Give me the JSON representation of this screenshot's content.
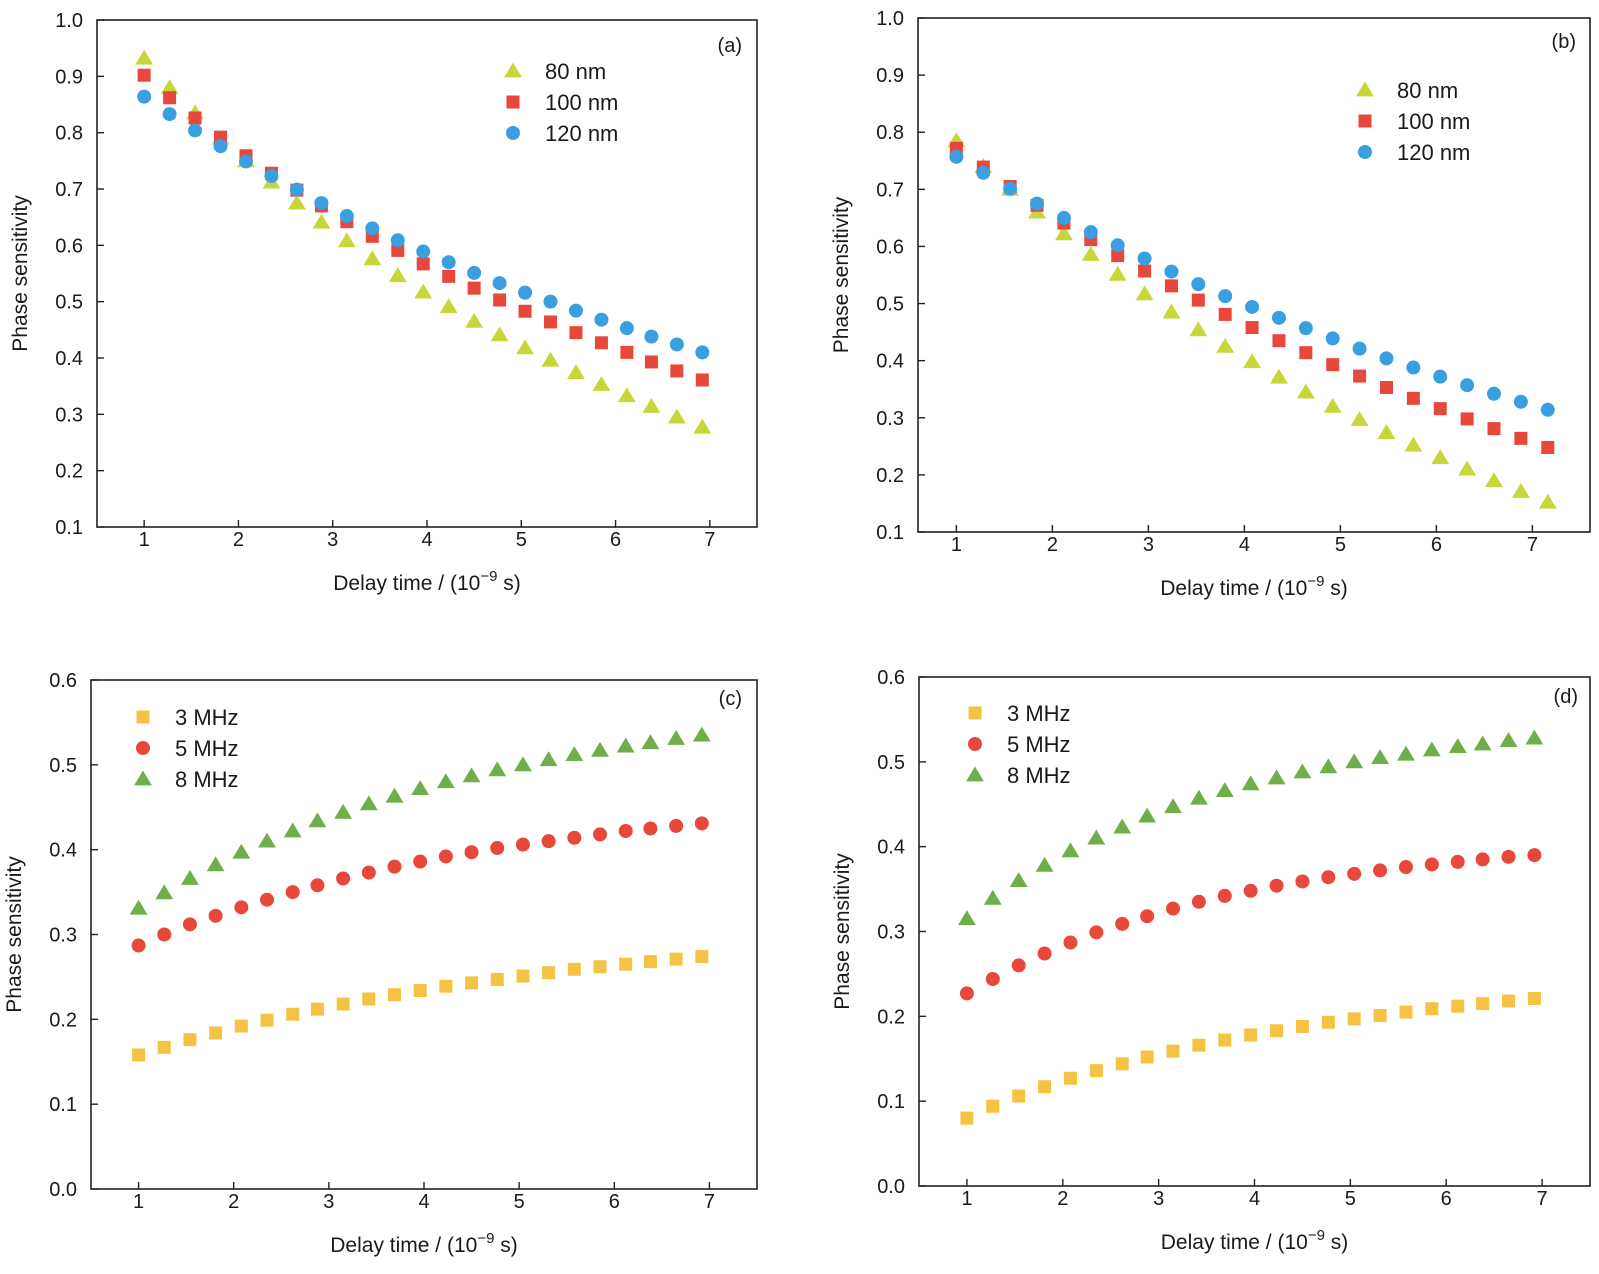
{
  "chart_data": [
    {
      "type": "scatter",
      "panel_label": "(a)",
      "xlabel": "Delay time / (10",
      "xlabel_exponent": "−9",
      "xlabel_suffix": " s)",
      "ylabel": "Phase sensitivity",
      "xlim": [
        0.5,
        7.5
      ],
      "ylim": [
        0.1,
        1.0
      ],
      "xticks": [
        1,
        2,
        3,
        4,
        5,
        6,
        7
      ],
      "yticks": [
        0.1,
        0.2,
        0.3,
        0.4,
        0.5,
        0.6,
        0.7,
        0.8,
        0.9,
        1.0
      ],
      "ytick_labels": [
        "0.1",
        "0.2",
        "0.3",
        "0.4",
        "0.5",
        "0.6",
        "0.7",
        "0.8",
        "0.9",
        "1.0"
      ],
      "grid": false,
      "legend_position": "top-right",
      "x": [
        1.0,
        1.27,
        1.54,
        1.81,
        2.08,
        2.35,
        2.62,
        2.88,
        3.15,
        3.42,
        3.69,
        3.96,
        4.23,
        4.5,
        4.77,
        5.04,
        5.31,
        5.58,
        5.85,
        6.12,
        6.38,
        6.65,
        6.92
      ],
      "series": [
        {
          "name": "80 nm",
          "marker": "triangle",
          "color": "#c8d63a",
          "values": [
            0.932,
            0.88,
            0.835,
            0.79,
            0.75,
            0.712,
            0.675,
            0.641,
            0.608,
            0.576,
            0.546,
            0.517,
            0.491,
            0.465,
            0.441,
            0.418,
            0.396,
            0.374,
            0.353,
            0.333,
            0.314,
            0.295,
            0.277
          ]
        },
        {
          "name": "100 nm",
          "marker": "square",
          "color": "#e8473b",
          "values": [
            0.902,
            0.862,
            0.826,
            0.792,
            0.759,
            0.728,
            0.698,
            0.67,
            0.642,
            0.616,
            0.591,
            0.567,
            0.545,
            0.524,
            0.503,
            0.483,
            0.464,
            0.445,
            0.427,
            0.41,
            0.393,
            0.377,
            0.361
          ]
        },
        {
          "name": "120 nm",
          "marker": "circle",
          "color": "#3a9fe0",
          "values": [
            0.864,
            0.833,
            0.804,
            0.776,
            0.749,
            0.723,
            0.699,
            0.675,
            0.652,
            0.63,
            0.609,
            0.589,
            0.57,
            0.551,
            0.533,
            0.516,
            0.5,
            0.484,
            0.468,
            0.453,
            0.438,
            0.424,
            0.41
          ]
        }
      ]
    },
    {
      "type": "scatter",
      "panel_label": "(b)",
      "xlabel": "Delay time / (10",
      "xlabel_exponent": "−9",
      "xlabel_suffix": " s)",
      "ylabel": "Phase sensitivity",
      "xlim": [
        0.6,
        7.6
      ],
      "ylim": [
        0.1,
        1.0
      ],
      "xticks": [
        1,
        2,
        3,
        4,
        5,
        6,
        7
      ],
      "yticks": [
        0.1,
        0.2,
        0.3,
        0.4,
        0.5,
        0.6,
        0.7,
        0.8,
        0.9,
        1.0
      ],
      "ytick_labels": [
        "0.1",
        "0.2",
        "0.3",
        "0.4",
        "0.5",
        "0.6",
        "0.7",
        "0.8",
        "0.9",
        "1.0"
      ],
      "grid": false,
      "legend_position": "top-right",
      "x": [
        1.0,
        1.28,
        1.56,
        1.84,
        2.12,
        2.4,
        2.68,
        2.96,
        3.24,
        3.52,
        3.8,
        4.08,
        4.36,
        4.64,
        4.92,
        5.2,
        5.48,
        5.76,
        6.04,
        6.32,
        6.6,
        6.88,
        7.16
      ],
      "series": [
        {
          "name": "80 nm",
          "marker": "triangle",
          "color": "#c8d63a",
          "values": [
            0.785,
            0.74,
            0.7,
            0.66,
            0.622,
            0.586,
            0.551,
            0.517,
            0.485,
            0.454,
            0.425,
            0.398,
            0.371,
            0.345,
            0.32,
            0.297,
            0.274,
            0.252,
            0.23,
            0.21,
            0.19,
            0.171,
            0.152
          ]
        },
        {
          "name": "100 nm",
          "marker": "square",
          "color": "#e8473b",
          "values": [
            0.772,
            0.739,
            0.705,
            0.672,
            0.641,
            0.612,
            0.584,
            0.557,
            0.531,
            0.506,
            0.481,
            0.458,
            0.435,
            0.414,
            0.393,
            0.373,
            0.353,
            0.334,
            0.316,
            0.298,
            0.281,
            0.264,
            0.248
          ]
        },
        {
          "name": "120 nm",
          "marker": "circle",
          "color": "#3a9fe0",
          "values": [
            0.757,
            0.729,
            0.701,
            0.675,
            0.65,
            0.625,
            0.602,
            0.579,
            0.556,
            0.534,
            0.513,
            0.494,
            0.475,
            0.457,
            0.439,
            0.421,
            0.404,
            0.388,
            0.372,
            0.357,
            0.342,
            0.328,
            0.314
          ]
        }
      ]
    },
    {
      "type": "scatter",
      "panel_label": "(c)",
      "xlabel": "Delay time / (10",
      "xlabel_exponent": "−9",
      "xlabel_suffix": " s)",
      "ylabel": "Phase sensitivity",
      "xlim": [
        0.5,
        7.5
      ],
      "ylim": [
        0.0,
        0.6
      ],
      "xticks": [
        1,
        2,
        3,
        4,
        5,
        6,
        7
      ],
      "yticks": [
        0.0,
        0.1,
        0.2,
        0.3,
        0.4,
        0.5,
        0.6
      ],
      "ytick_labels": [
        "0.0",
        "0.1",
        "0.2",
        "0.3",
        "0.4",
        "0.5",
        "0.6"
      ],
      "grid": false,
      "legend_position": "top-left",
      "x": [
        1.0,
        1.27,
        1.54,
        1.81,
        2.08,
        2.35,
        2.62,
        2.88,
        3.15,
        3.42,
        3.69,
        3.96,
        4.23,
        4.5,
        4.77,
        5.04,
        5.31,
        5.58,
        5.85,
        6.12,
        6.38,
        6.65,
        6.92
      ],
      "series": [
        {
          "name": "3 MHz",
          "marker": "square",
          "color": "#f5c344",
          "values": [
            0.158,
            0.167,
            0.176,
            0.184,
            0.192,
            0.199,
            0.206,
            0.212,
            0.218,
            0.224,
            0.229,
            0.234,
            0.239,
            0.243,
            0.247,
            0.251,
            0.255,
            0.259,
            0.262,
            0.265,
            0.268,
            0.271,
            0.274
          ]
        },
        {
          "name": "5 MHz",
          "marker": "circle",
          "color": "#e8473b",
          "values": [
            0.287,
            0.3,
            0.312,
            0.322,
            0.332,
            0.341,
            0.35,
            0.358,
            0.366,
            0.373,
            0.38,
            0.386,
            0.392,
            0.397,
            0.402,
            0.406,
            0.41,
            0.414,
            0.418,
            0.422,
            0.425,
            0.428,
            0.431
          ]
        },
        {
          "name": "8 MHz",
          "marker": "triangle",
          "color": "#6fae4a",
          "values": [
            0.331,
            0.349,
            0.366,
            0.382,
            0.397,
            0.41,
            0.422,
            0.434,
            0.444,
            0.454,
            0.463,
            0.472,
            0.48,
            0.487,
            0.494,
            0.5,
            0.506,
            0.512,
            0.517,
            0.522,
            0.526,
            0.531,
            0.535
          ]
        }
      ]
    },
    {
      "type": "scatter",
      "panel_label": "(d)",
      "xlabel": "Delay time / (10",
      "xlabel_exponent": "−9",
      "xlabel_suffix": " s)",
      "ylabel": "Phase sensitivity",
      "xlim": [
        0.5,
        7.5
      ],
      "ylim": [
        0.0,
        0.6
      ],
      "xticks": [
        1,
        2,
        3,
        4,
        5,
        6,
        7
      ],
      "yticks": [
        0.0,
        0.1,
        0.2,
        0.3,
        0.4,
        0.5,
        0.6
      ],
      "ytick_labels": [
        "0.0",
        "0.1",
        "0.2",
        "0.3",
        "0.4",
        "0.5",
        "0.6"
      ],
      "grid": false,
      "legend_position": "top-left",
      "x": [
        1.0,
        1.27,
        1.54,
        1.81,
        2.08,
        2.35,
        2.62,
        2.88,
        3.15,
        3.42,
        3.69,
        3.96,
        4.23,
        4.5,
        4.77,
        5.04,
        5.31,
        5.58,
        5.85,
        6.12,
        6.38,
        6.65,
        6.92
      ],
      "series": [
        {
          "name": "3 MHz",
          "marker": "square",
          "color": "#f5c344",
          "values": [
            0.08,
            0.094,
            0.106,
            0.117,
            0.127,
            0.136,
            0.144,
            0.152,
            0.159,
            0.166,
            0.172,
            0.178,
            0.183,
            0.188,
            0.193,
            0.197,
            0.201,
            0.205,
            0.209,
            0.212,
            0.215,
            0.218,
            0.221
          ]
        },
        {
          "name": "5 MHz",
          "marker": "circle",
          "color": "#e8473b",
          "values": [
            0.227,
            0.244,
            0.26,
            0.274,
            0.287,
            0.299,
            0.309,
            0.318,
            0.327,
            0.335,
            0.342,
            0.348,
            0.354,
            0.359,
            0.364,
            0.368,
            0.372,
            0.376,
            0.379,
            0.382,
            0.385,
            0.388,
            0.39
          ]
        },
        {
          "name": "8 MHz",
          "marker": "triangle",
          "color": "#6fae4a",
          "values": [
            0.315,
            0.339,
            0.36,
            0.378,
            0.395,
            0.41,
            0.423,
            0.436,
            0.447,
            0.457,
            0.466,
            0.474,
            0.481,
            0.488,
            0.494,
            0.5,
            0.505,
            0.509,
            0.514,
            0.518,
            0.521,
            0.525,
            0.528
          ]
        }
      ]
    }
  ]
}
